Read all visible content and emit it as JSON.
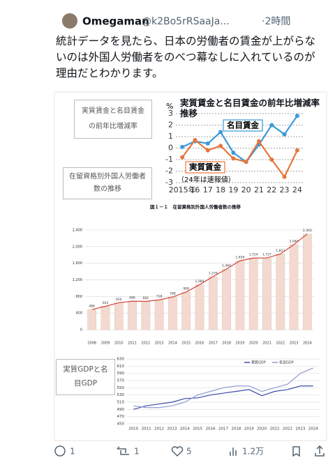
{
  "tweet": {
    "name": "Omegaman",
    "handle": "@k2Bo5rRSaaJa...",
    "time": "·2時間",
    "text": "統計データを見たら、日本の労働者の賃金が上がらないのは外国人労働者をのべつ幕なしに入れているのが理由だとわかります。",
    "labels": [
      "実質賃金と名目賃金の前年比増減率",
      "在留資格別外国人労働者数の推移",
      "実質GDPと名目GDP"
    ],
    "replies": "1",
    "reposts": "1",
    "likes": "5",
    "views": "1.2万"
  },
  "chart_data": [
    {
      "type": "line",
      "title": "実質賃金と名目賃金の前年比増減率推移",
      "y_unit": "%",
      "note": "（24年は速報値）",
      "categories": [
        "2015年",
        "16",
        "17",
        "18",
        "19",
        "20",
        "21",
        "22",
        "23",
        "24"
      ],
      "series": [
        {
          "name": "名目賃金",
          "color": "#3a9ad9",
          "values": [
            0.1,
            0.6,
            0.4,
            1.4,
            -0.4,
            -1.2,
            0.3,
            2.0,
            1.2,
            2.8
          ]
        },
        {
          "name": "実質賃金",
          "color": "#e8763a",
          "values": [
            -0.8,
            0.7,
            -0.2,
            0.2,
            -0.9,
            -1.2,
            0.6,
            -1.0,
            -2.5,
            -0.2
          ]
        }
      ],
      "ylim": [
        -3,
        3
      ],
      "yticks": [
        -3,
        -2,
        -1,
        0,
        1,
        2,
        3
      ],
      "grid": true
    },
    {
      "type": "bar",
      "title": "図１－１　在留資格別外国人労働者数の推移",
      "categories": [
        "2008",
        "2009",
        "2010",
        "2011",
        "2012",
        "2013",
        "2014",
        "2015",
        "2016",
        "2017",
        "2018",
        "2019",
        "2020",
        "2021",
        "2022",
        "2023",
        "2024"
      ],
      "values": [
        486,
        563,
        650,
        686,
        682,
        718,
        788,
        908,
        1084,
        1279,
        1460,
        1659,
        1724,
        1727,
        1823,
        2049,
        2303
      ],
      "value_labels": [
        "486",
        "563",
        "650",
        "686",
        "682",
        "718",
        "788",
        "908",
        "1,084",
        "1,279",
        "1,460",
        "1,659",
        "1,724",
        "1,727",
        "1,823",
        "2,049",
        "2,303"
      ],
      "color": "#f3d9cf",
      "line_color": "#d0463c",
      "ylim": [
        -200,
        2600
      ],
      "yticks": [
        0,
        400,
        800,
        {
          "value": 1200,
          "label": "1,200"
        },
        {
          "value": 1600,
          "label": "1,600"
        },
        {
          "value": 2000,
          "label": "2,000"
        },
        {
          "value": 2400,
          "label": "2,400"
        }
      ],
      "grid": true
    },
    {
      "type": "line",
      "categories": [
        "2010",
        "2011",
        "2012",
        "2013",
        "2014",
        "2015",
        "2016",
        "2017",
        "2018",
        "2019",
        "2020",
        "2021",
        "2022",
        "2023",
        "2024"
      ],
      "series": [
        {
          "name": "実質GDP",
          "color": "#3b4aa8",
          "values": [
            490,
            500,
            505,
            510,
            520,
            522,
            530,
            535,
            540,
            545,
            528,
            540,
            545,
            555,
            555
          ]
        },
        {
          "name": "名目GDP",
          "color": "#8f9ad6",
          "values": [
            500,
            495,
            495,
            500,
            510,
            530,
            540,
            550,
            555,
            555,
            540,
            550,
            560,
            590,
            605
          ]
        }
      ],
      "ylim": [
        450,
        630
      ],
      "yticks": [
        450,
        470,
        490,
        510,
        530,
        550,
        570,
        590,
        610,
        630
      ],
      "grid": true
    }
  ]
}
